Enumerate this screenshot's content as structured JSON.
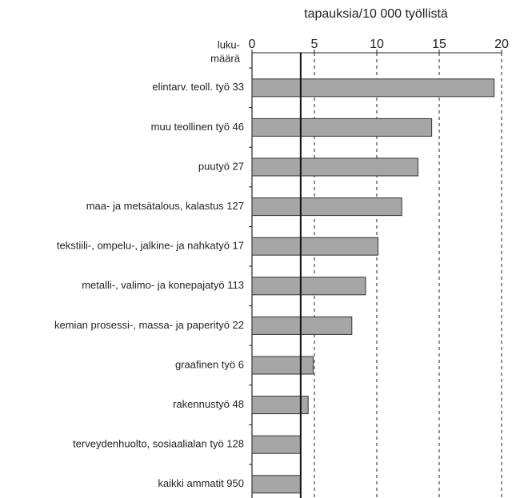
{
  "chart_data": {
    "type": "barh",
    "x_label": "tapauksia/10 000 työllistä",
    "category_header": [
      "luku-",
      "määrä"
    ],
    "categories": [
      "elintarv. teoll. työ 33",
      "muu teollinen työ 46",
      "puutyö 27",
      "maa- ja metsätalous, kalastus 127",
      "tekstiili-, ompelu-, jalkine- ja nahkatyö 17",
      "metalli-, valimo- ja konepajatyö 113",
      "kemian prosessi-, massa- ja paperityö 22",
      "graafinen työ 6",
      "rakennustyö 48",
      "terveydenhuolto, sosiaalialan työ 128",
      "kaikki ammatit 950"
    ],
    "values": [
      19.4,
      14.4,
      13.3,
      12.0,
      10.1,
      9.1,
      8.0,
      4.9,
      4.5,
      3.9,
      3.9
    ],
    "color": "#a6a6a6",
    "reference_value": 3.9,
    "xlim": [
      0,
      20
    ],
    "xticks": [
      0,
      5,
      10,
      15,
      20
    ],
    "grid": true
  }
}
